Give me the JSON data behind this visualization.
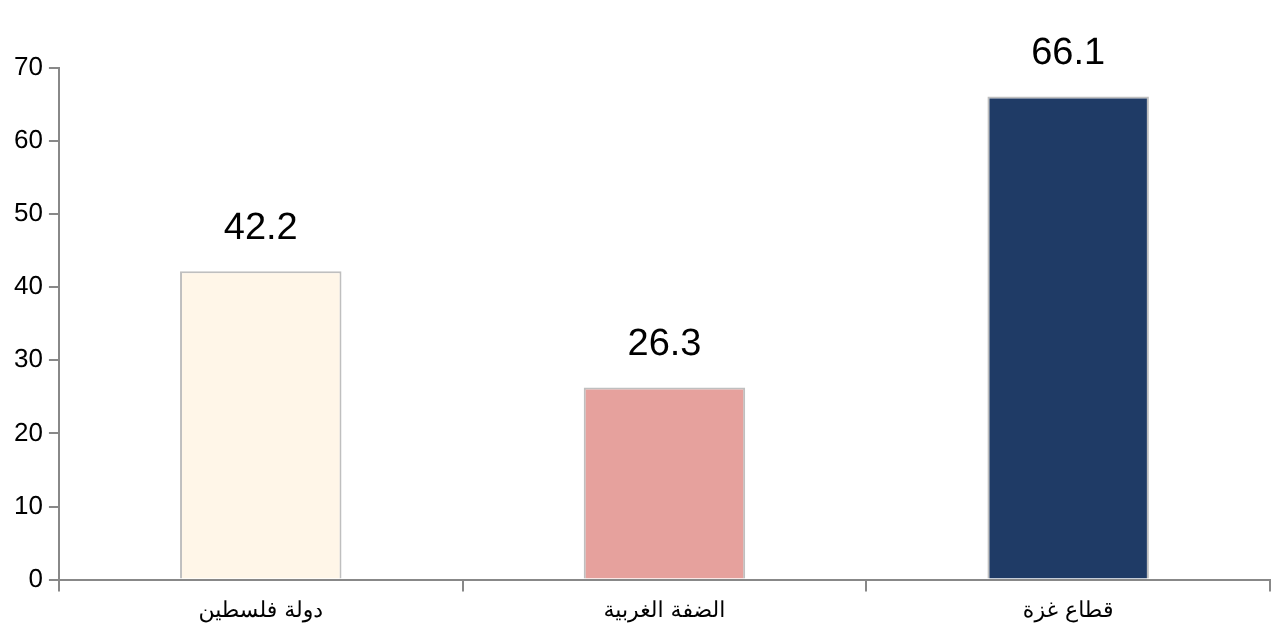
{
  "chart_data": {
    "type": "bar",
    "categories": [
      "دولة فلسطين",
      "الضفة الغربية",
      "قطاع غزة"
    ],
    "values": [
      42.2,
      26.3,
      66.1
    ],
    "colors": [
      "#fff6e8",
      "#e6a19d",
      "#1f3b66"
    ],
    "ylim": [
      0,
      70
    ],
    "yticks": [
      0,
      10,
      20,
      30,
      40,
      50,
      60,
      70
    ],
    "grid": false,
    "legend": false,
    "data_labels": true
  }
}
